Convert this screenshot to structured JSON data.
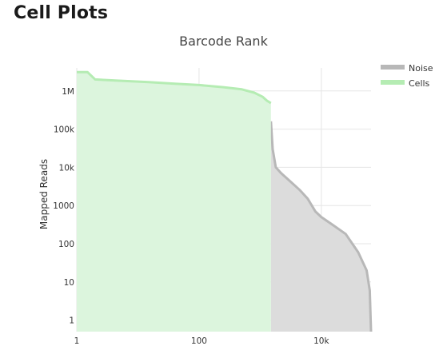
{
  "page": {
    "title": "Cell Plots"
  },
  "chart_data": {
    "type": "area",
    "title": "Barcode Rank",
    "xlabel": "",
    "ylabel": "Mapped Reads",
    "x_scale": "log",
    "y_scale": "log",
    "xlim": [
      1,
      65000
    ],
    "ylim": [
      0.5,
      4000000
    ],
    "x_ticks": [
      {
        "value": 1,
        "label": "1"
      },
      {
        "value": 100,
        "label": "100"
      },
      {
        "value": 10000,
        "label": "10k"
      }
    ],
    "y_ticks": [
      {
        "value": 1,
        "label": "1"
      },
      {
        "value": 10,
        "label": "10"
      },
      {
        "value": 100,
        "label": "100"
      },
      {
        "value": 1000,
        "label": "1000"
      },
      {
        "value": 10000,
        "label": "10k"
      },
      {
        "value": 100000,
        "label": "100k"
      },
      {
        "value": 1000000,
        "label": "1M"
      }
    ],
    "grid": true,
    "legend_position": "top-right",
    "series": [
      {
        "name": "Cells",
        "line_color": "#b5ecb3",
        "fill_color": "#dcf5dd",
        "points": [
          [
            1,
            3100000
          ],
          [
            1.5,
            3100000
          ],
          [
            2,
            2000000
          ],
          [
            5,
            1850000
          ],
          [
            15,
            1700000
          ],
          [
            40,
            1550000
          ],
          [
            100,
            1430000
          ],
          [
            250,
            1250000
          ],
          [
            500,
            1100000
          ],
          [
            800,
            900000
          ],
          [
            1100,
            700000
          ],
          [
            1300,
            550000
          ],
          [
            1500,
            480000
          ]
        ]
      },
      {
        "name": "Noise",
        "line_color": "#b8b8b8",
        "fill_color": "#dcdcdc",
        "points": [
          [
            1500,
            160000
          ],
          [
            1600,
            30000
          ],
          [
            1800,
            10000
          ],
          [
            2200,
            7000
          ],
          [
            3000,
            4500
          ],
          [
            4500,
            2500
          ],
          [
            6000,
            1500
          ],
          [
            8000,
            700
          ],
          [
            10000,
            500
          ],
          [
            15000,
            320
          ],
          [
            25000,
            180
          ],
          [
            40000,
            60
          ],
          [
            55000,
            20
          ],
          [
            62000,
            6
          ],
          [
            65000,
            0.5
          ]
        ]
      }
    ]
  }
}
